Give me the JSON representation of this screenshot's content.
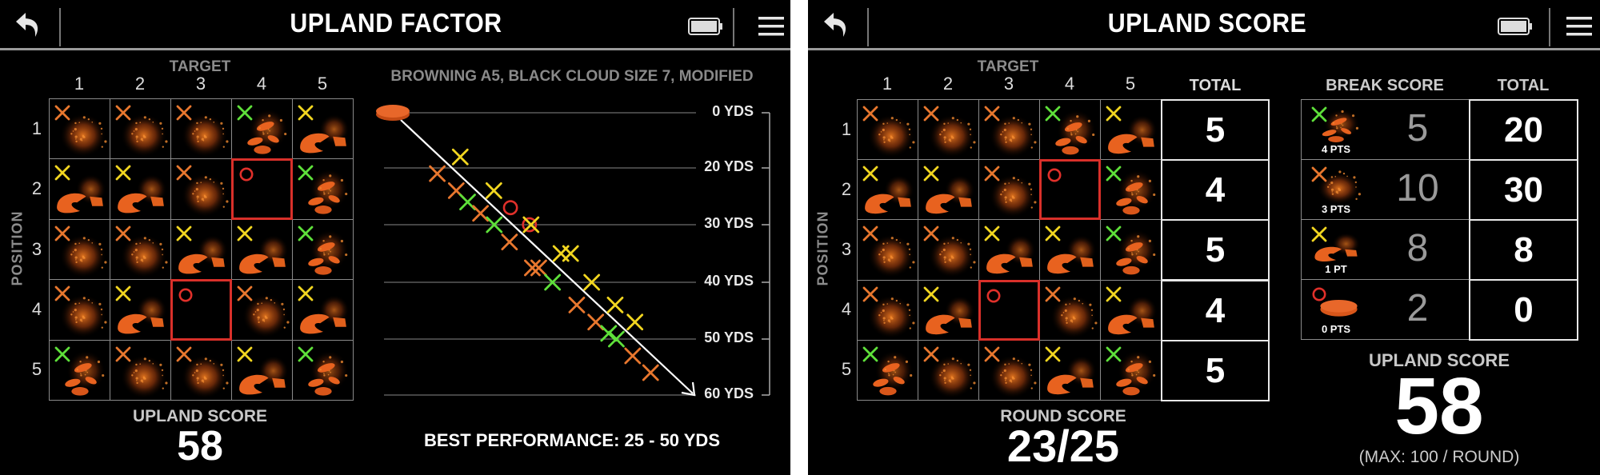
{
  "colors": {
    "orange": "#e8772e",
    "green": "#5ee03a",
    "yellow": "#f2d620",
    "red": "#e0302a"
  },
  "icons": {
    "back": "undo-arrow-icon",
    "battery": "battery-icon",
    "menu": "hamburger-menu-icon",
    "clay": "clay-target-icon"
  },
  "grid": {
    "target_label": "TARGET",
    "position_label": "POSITION",
    "columns": [
      "1",
      "2",
      "3",
      "4",
      "5"
    ],
    "rows": [
      "1",
      "2",
      "3",
      "4",
      "5"
    ],
    "legend": {
      "green": "chips",
      "orange": "dust",
      "yellow": "broken",
      "red": "miss"
    },
    "cells": [
      [
        "orange",
        "orange",
        "orange",
        "green",
        "yellow"
      ],
      [
        "yellow",
        "yellow",
        "orange",
        "red",
        "green"
      ],
      [
        "orange",
        "orange",
        "yellow",
        "yellow",
        "green"
      ],
      [
        "orange",
        "yellow",
        "red",
        "orange",
        "yellow"
      ],
      [
        "green",
        "orange",
        "orange",
        "yellow",
        "green"
      ]
    ]
  },
  "left": {
    "title": "UPLAND FACTOR",
    "upland_score_label": "UPLAND SCORE",
    "upland_score": "58",
    "chart": {
      "title": "BROWNING A5, BLACK CLOUD SIZE 7, MODIFIED",
      "distance_labels": [
        "0 YDS",
        "20 YDS",
        "30 YDS",
        "40 YDS",
        "50 YDS",
        "60 YDS"
      ],
      "shots": [
        {
          "yds": 16,
          "color": "yellow",
          "mark": "x"
        },
        {
          "yds": 21,
          "color": "orange",
          "mark": "x"
        },
        {
          "yds": 24,
          "color": "orange",
          "mark": "x"
        },
        {
          "yds": 24,
          "color": "yellow",
          "mark": "x"
        },
        {
          "yds": 26,
          "color": "green",
          "mark": "x"
        },
        {
          "yds": 27,
          "color": "red",
          "mark": "o"
        },
        {
          "yds": 28,
          "color": "orange",
          "mark": "x"
        },
        {
          "yds": 30,
          "color": "green",
          "mark": "x"
        },
        {
          "yds": 30,
          "color": "red",
          "mark": "o"
        },
        {
          "yds": 30,
          "color": "yellow",
          "mark": "x"
        },
        {
          "yds": 33,
          "color": "orange",
          "mark": "x"
        },
        {
          "yds": 35,
          "color": "yellow",
          "mark": "x"
        },
        {
          "yds": 35,
          "color": "yellow",
          "mark": "x"
        },
        {
          "yds": 37.5,
          "color": "orange",
          "mark": "x"
        },
        {
          "yds": 37.5,
          "color": "orange",
          "mark": "x"
        },
        {
          "yds": 40,
          "color": "green",
          "mark": "x"
        },
        {
          "yds": 40,
          "color": "yellow",
          "mark": "x"
        },
        {
          "yds": 44,
          "color": "orange",
          "mark": "x"
        },
        {
          "yds": 44,
          "color": "yellow",
          "mark": "x"
        },
        {
          "yds": 47,
          "color": "orange",
          "mark": "x"
        },
        {
          "yds": 47,
          "color": "yellow",
          "mark": "x"
        },
        {
          "yds": 49,
          "color": "green",
          "mark": "x"
        },
        {
          "yds": 50,
          "color": "green",
          "mark": "x"
        },
        {
          "yds": 53,
          "color": "orange",
          "mark": "x"
        },
        {
          "yds": 56,
          "color": "orange",
          "mark": "x"
        }
      ],
      "best_performance": "BEST PERFORMANCE: 25 - 50 YDS"
    }
  },
  "right": {
    "title": "UPLAND SCORE",
    "total_label": "TOTAL",
    "row_totals": [
      "5",
      "4",
      "5",
      "4",
      "5"
    ],
    "round_score_label": "ROUND SCORE",
    "round_score": "23/25",
    "break_score_label": "BREAK SCORE",
    "break_total_label": "TOTAL",
    "break_rows": [
      {
        "color": "green",
        "mark": "x",
        "image": "chips",
        "pts": "4 PTS",
        "count": "5",
        "total": "20"
      },
      {
        "color": "orange",
        "mark": "x",
        "image": "dust",
        "pts": "3 PTS",
        "count": "10",
        "total": "30"
      },
      {
        "color": "yellow",
        "mark": "x",
        "image": "broken",
        "pts": "1 PT",
        "count": "8",
        "total": "8"
      },
      {
        "color": "red",
        "mark": "o",
        "image": "miss",
        "pts": "0 PTS",
        "count": "2",
        "total": "0"
      }
    ],
    "upland_score_label": "UPLAND SCORE",
    "upland_score": "58",
    "max_label": "(MAX: 100 / ROUND)"
  }
}
